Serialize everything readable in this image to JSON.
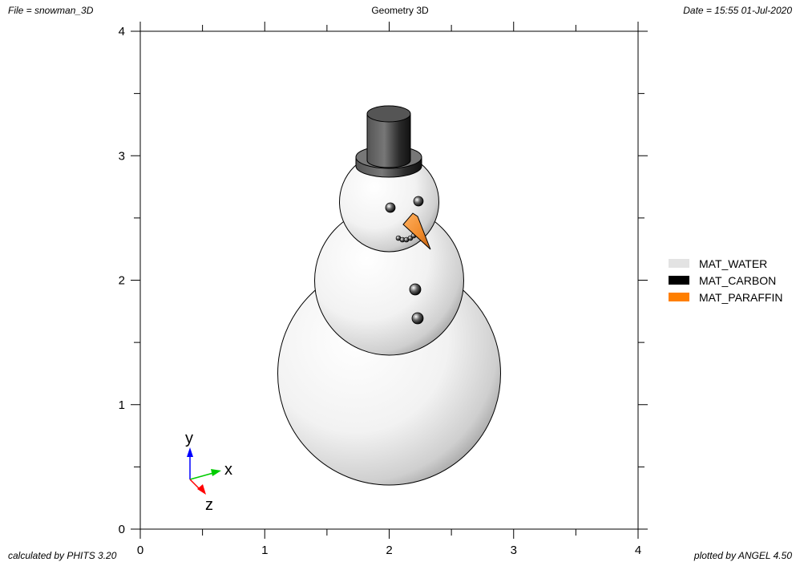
{
  "header": {
    "file": "File = snowman_3D",
    "title": "Geometry 3D",
    "date": "Date = 15:55 01-Jul-2020"
  },
  "footer": {
    "calculated": "calculated by PHITS 3.20",
    "plotted": "plotted by ANGEL 4.50"
  },
  "chart_data": {
    "type": "3d-geometry",
    "title": "Geometry 3D",
    "xlim": [
      0,
      4
    ],
    "ylim": [
      0,
      4
    ],
    "xticks": [
      0,
      1,
      2,
      3,
      4
    ],
    "yticks": [
      0,
      1,
      2,
      3,
      4
    ],
    "axis_triad": {
      "x": "x",
      "y": "y",
      "z": "z"
    },
    "legend": {
      "placement": "right",
      "items": [
        {
          "name": "MAT_WATER",
          "color": "#e3e3e3"
        },
        {
          "name": "MAT_CARBON",
          "color": "#000000"
        },
        {
          "name": "MAT_PARAFFIN",
          "color": "#ff7f00"
        }
      ]
    },
    "objects": [
      {
        "name": "bottom-ball",
        "material": "MAT_WATER",
        "center": [
          2.0,
          1.25
        ],
        "radius": 0.9
      },
      {
        "name": "middle-ball",
        "material": "MAT_WATER",
        "center": [
          2.0,
          2.0
        ],
        "radius": 0.6
      },
      {
        "name": "head",
        "material": "MAT_WATER",
        "center": [
          2.0,
          2.6
        ],
        "radius": 0.4
      },
      {
        "name": "hat-brim",
        "material": "MAT_CARBON",
        "center": [
          2.0,
          2.98
        ],
        "radius": 0.27
      },
      {
        "name": "hat-top",
        "material": "MAT_CARBON",
        "center": [
          2.0,
          3.25
        ],
        "radius": 0.18
      },
      {
        "name": "nose",
        "material": "MAT_PARAFFIN",
        "center": [
          2.2,
          2.4
        ]
      },
      {
        "name": "eye-left",
        "material": "MAT_CARBON",
        "center": [
          2.02,
          2.58
        ]
      },
      {
        "name": "eye-right",
        "material": "MAT_CARBON",
        "center": [
          2.24,
          2.63
        ]
      },
      {
        "name": "button-upper",
        "material": "MAT_CARBON",
        "center": [
          2.22,
          1.92
        ]
      },
      {
        "name": "button-lower",
        "material": "MAT_CARBON",
        "center": [
          2.24,
          1.69
        ]
      }
    ]
  }
}
